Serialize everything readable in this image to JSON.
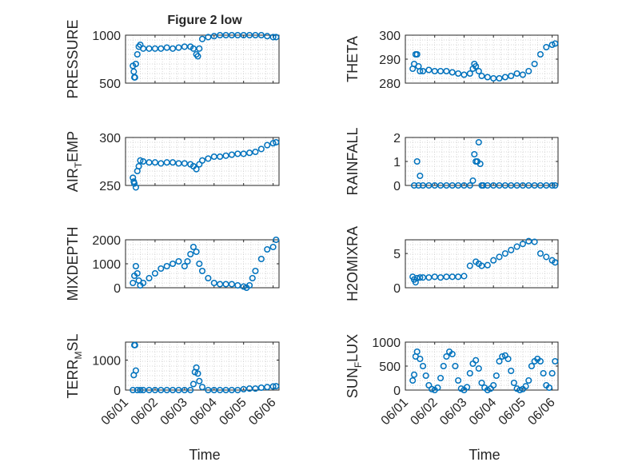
{
  "title": "Figure 2 low",
  "colors": {
    "marker": "#0072BD",
    "axis": "#262626",
    "grid": "#c8c8c8"
  },
  "chart_data": [
    {
      "type": "scatter",
      "ylabel": "PRESSURE",
      "ylim": [
        500,
        1000
      ],
      "yticks": [
        500,
        1000
      ],
      "xlim": [
        0,
        5.2
      ],
      "x": [
        0.25,
        0.28,
        0.3,
        0.32,
        0.35,
        0.4,
        0.45,
        0.5,
        0.6,
        0.8,
        1.0,
        1.2,
        1.4,
        1.6,
        1.8,
        2.0,
        2.2,
        2.3,
        2.4,
        2.45,
        2.5,
        2.6,
        2.8,
        3.0,
        3.2,
        3.4,
        3.6,
        3.8,
        4.0,
        4.2,
        4.4,
        4.6,
        4.8,
        5.0,
        5.1
      ],
      "values": [
        680,
        620,
        560,
        560,
        700,
        800,
        880,
        900,
        860,
        860,
        860,
        860,
        870,
        860,
        870,
        880,
        880,
        860,
        800,
        780,
        860,
        960,
        980,
        990,
        1000,
        1000,
        1000,
        1000,
        1000,
        1000,
        1000,
        1000,
        990,
        980,
        980
      ]
    },
    {
      "type": "scatter",
      "ylabel": "THETA",
      "ylim": [
        280,
        300
      ],
      "yticks": [
        280,
        290,
        300
      ],
      "xlim": [
        0,
        5.2
      ],
      "x": [
        0.25,
        0.3,
        0.35,
        0.4,
        0.45,
        0.5,
        0.6,
        0.8,
        1.0,
        1.2,
        1.4,
        1.6,
        1.8,
        2.0,
        2.2,
        2.3,
        2.35,
        2.4,
        2.5,
        2.6,
        2.8,
        3.0,
        3.2,
        3.4,
        3.6,
        3.8,
        4.0,
        4.2,
        4.4,
        4.6,
        4.8,
        5.0,
        5.1
      ],
      "values": [
        286,
        288,
        292,
        292,
        287,
        285,
        285,
        285.5,
        285,
        285,
        285,
        284.5,
        284,
        283.5,
        284,
        286,
        288,
        287,
        285,
        283,
        282.5,
        282,
        282,
        282.5,
        283,
        284,
        283.5,
        285,
        288,
        292,
        295,
        296,
        296.5
      ]
    },
    {
      "type": "scatter",
      "ylabel": "AIR_TEMP",
      "ylim": [
        250,
        300
      ],
      "yticks": [
        250,
        300
      ],
      "xlim": [
        0,
        5.2
      ],
      "x": [
        0.25,
        0.28,
        0.3,
        0.35,
        0.4,
        0.45,
        0.5,
        0.6,
        0.8,
        1.0,
        1.2,
        1.4,
        1.6,
        1.8,
        2.0,
        2.2,
        2.3,
        2.4,
        2.5,
        2.6,
        2.8,
        3.0,
        3.2,
        3.4,
        3.6,
        3.8,
        4.0,
        4.2,
        4.4,
        4.6,
        4.8,
        5.0,
        5.1
      ],
      "values": [
        258,
        254,
        252,
        248,
        265,
        270,
        276,
        275,
        274,
        274,
        273,
        274,
        274,
        273,
        273,
        272,
        270,
        267,
        272,
        276,
        278,
        280,
        280,
        281,
        282,
        283,
        283,
        284,
        285,
        288,
        292,
        294,
        295
      ]
    },
    {
      "type": "scatter",
      "ylabel": "RAINFALL",
      "ylim": [
        0,
        2
      ],
      "yticks": [
        0,
        1,
        2
      ],
      "xlim": [
        0,
        5.2
      ],
      "x": [
        0.3,
        0.4,
        0.45,
        0.5,
        0.6,
        0.8,
        1.0,
        1.2,
        1.4,
        1.6,
        1.8,
        2.0,
        2.2,
        2.3,
        2.35,
        2.4,
        2.45,
        2.5,
        2.55,
        2.6,
        2.65,
        2.8,
        3.0,
        3.2,
        3.4,
        3.6,
        3.8,
        4.0,
        4.2,
        4.4,
        4.6,
        4.8,
        5.0,
        5.1
      ],
      "values": [
        0,
        1.0,
        0,
        0.4,
        0,
        0,
        0,
        0,
        0,
        0,
        0,
        0,
        0,
        0.2,
        1.3,
        1.0,
        1.0,
        1.8,
        0.9,
        0,
        0,
        0,
        0,
        0,
        0,
        0,
        0,
        0,
        0,
        0,
        0,
        0,
        0,
        0
      ]
    },
    {
      "type": "scatter",
      "ylabel": "MIXDEPTH",
      "ylim": [
        0,
        2000
      ],
      "yticks": [
        0,
        1000,
        2000
      ],
      "xlim": [
        0,
        5.2
      ],
      "x": [
        0.25,
        0.3,
        0.35,
        0.4,
        0.45,
        0.5,
        0.6,
        0.8,
        1.0,
        1.2,
        1.4,
        1.6,
        1.8,
        2.0,
        2.1,
        2.2,
        2.3,
        2.4,
        2.5,
        2.6,
        2.8,
        3.0,
        3.2,
        3.4,
        3.6,
        3.8,
        4.0,
        4.1,
        4.2,
        4.3,
        4.4,
        4.6,
        4.8,
        5.0,
        5.1
      ],
      "values": [
        200,
        500,
        900,
        600,
        300,
        100,
        200,
        400,
        600,
        800,
        900,
        1000,
        1100,
        900,
        1100,
        1400,
        1700,
        1500,
        1000,
        700,
        400,
        200,
        150,
        150,
        150,
        100,
        50,
        0,
        100,
        400,
        700,
        1200,
        1600,
        1700,
        2000
      ]
    },
    {
      "type": "scatter",
      "ylabel": "H2OMIXRA",
      "ylim": [
        0,
        7
      ],
      "yticks": [
        0,
        5
      ],
      "xlim": [
        0,
        5.2
      ],
      "x": [
        0.25,
        0.3,
        0.35,
        0.4,
        0.5,
        0.6,
        0.8,
        1.0,
        1.2,
        1.4,
        1.6,
        1.8,
        2.0,
        2.2,
        2.4,
        2.5,
        2.6,
        2.8,
        3.0,
        3.2,
        3.4,
        3.6,
        3.8,
        4.0,
        4.2,
        4.4,
        4.6,
        4.8,
        5.0,
        5.1
      ],
      "values": [
        1.6,
        1.2,
        0.8,
        1.4,
        1.5,
        1.5,
        1.5,
        1.6,
        1.5,
        1.6,
        1.6,
        1.6,
        1.7,
        3.2,
        3.8,
        3.5,
        3.2,
        3.3,
        4.0,
        4.5,
        5.0,
        5.5,
        6.0,
        6.4,
        6.8,
        6.7,
        5.0,
        4.5,
        4.0,
        3.7
      ]
    },
    {
      "type": "scatter",
      "ylabel": "TERR_MSL",
      "ylim": [
        0,
        1600
      ],
      "yticks": [
        0,
        1000
      ],
      "xlim": [
        0,
        5.2
      ],
      "x": [
        0.25,
        0.28,
        0.3,
        0.32,
        0.35,
        0.4,
        0.5,
        0.6,
        0.8,
        1.0,
        1.2,
        1.4,
        1.6,
        1.8,
        2.0,
        2.2,
        2.3,
        2.35,
        2.4,
        2.45,
        2.5,
        2.6,
        2.8,
        3.0,
        3.2,
        3.4,
        3.6,
        3.8,
        4.0,
        4.2,
        4.4,
        4.6,
        4.8,
        5.0,
        5.1
      ],
      "values": [
        0,
        500,
        1500,
        1500,
        650,
        0,
        0,
        0,
        0,
        0,
        0,
        0,
        0,
        0,
        0,
        0,
        200,
        600,
        750,
        550,
        300,
        100,
        0,
        0,
        0,
        0,
        0,
        0,
        30,
        50,
        50,
        80,
        100,
        120,
        130
      ]
    },
    {
      "type": "scatter",
      "ylabel": "SUN_FLUX",
      "ylim": [
        0,
        1000
      ],
      "yticks": [
        0,
        500,
        1000
      ],
      "xlim": [
        0,
        5.2
      ],
      "x": [
        0.25,
        0.3,
        0.35,
        0.4,
        0.5,
        0.6,
        0.7,
        0.8,
        0.9,
        1.0,
        1.1,
        1.2,
        1.3,
        1.4,
        1.5,
        1.6,
        1.7,
        1.8,
        1.9,
        2.0,
        2.1,
        2.2,
        2.3,
        2.4,
        2.5,
        2.6,
        2.7,
        2.8,
        2.9,
        3.0,
        3.1,
        3.2,
        3.3,
        3.4,
        3.5,
        3.6,
        3.7,
        3.8,
        3.9,
        4.0,
        4.1,
        4.2,
        4.3,
        4.4,
        4.5,
        4.6,
        4.7,
        4.8,
        4.9,
        5.0,
        5.1
      ],
      "values": [
        200,
        320,
        700,
        800,
        650,
        500,
        300,
        100,
        20,
        0,
        50,
        250,
        500,
        700,
        800,
        750,
        500,
        200,
        30,
        0,
        60,
        350,
        550,
        620,
        450,
        150,
        50,
        0,
        30,
        100,
        300,
        600,
        700,
        720,
        650,
        400,
        150,
        30,
        0,
        20,
        80,
        200,
        500,
        600,
        650,
        600,
        350,
        100,
        50,
        350,
        600
      ]
    }
  ],
  "xticks": [
    "06/01",
    "06/02",
    "06/03",
    "06/04",
    "06/05",
    "06/06"
  ],
  "xlabel": "Time"
}
